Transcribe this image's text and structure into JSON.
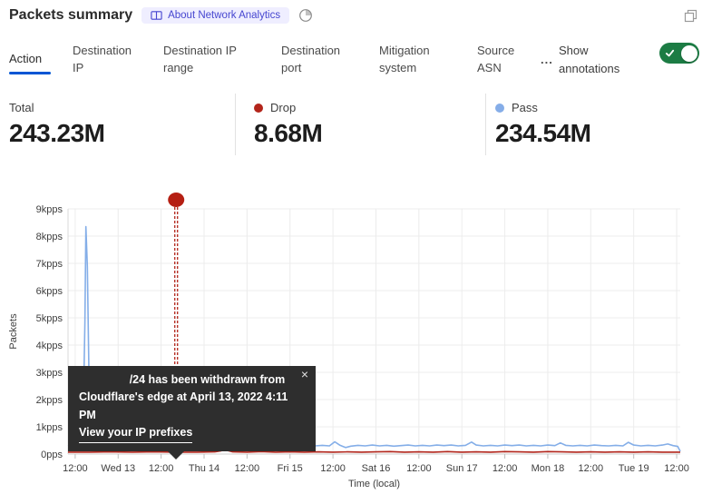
{
  "header": {
    "title": "Packets summary",
    "about_badge": "About Network Analytics",
    "icons": {
      "badge": "book-icon",
      "freshness": "clock-icon",
      "popout": "popout-icon"
    }
  },
  "tabs": {
    "items": [
      {
        "label": "Action",
        "active": true
      },
      {
        "label": "Destination IP",
        "active": false
      },
      {
        "label": "Destination IP range",
        "active": false
      },
      {
        "label": "Destination port",
        "active": false
      },
      {
        "label": "Mitigation system",
        "active": false
      },
      {
        "label": "Source ASN",
        "active": false
      }
    ],
    "more": "...",
    "show_annotations": {
      "label": "Show annotations",
      "enabled": true,
      "toggle_color": "#1c7c44"
    }
  },
  "stats": [
    {
      "label": "Total",
      "value": "243.23M",
      "dot": null
    },
    {
      "label": "Drop",
      "value": "8.68M",
      "dot": "#b3251b"
    },
    {
      "label": "Pass",
      "value": "234.54M",
      "dot": "#85ade8"
    }
  ],
  "tooltip": {
    "line1": "/24 has been withdrawn from",
    "line2": "Cloudflare's edge at April 13, 2022 4:11 PM",
    "link": "View your IP prefixes",
    "close": "×"
  },
  "chart_data": {
    "type": "line",
    "title": "Packets summary",
    "xlabel": "Time (local)",
    "ylabel": "Packets",
    "x_tick_labels": [
      "12:00",
      "Wed 13",
      "12:00",
      "Thu 14",
      "12:00",
      "Fri 15",
      "12:00",
      "Sat 16",
      "12:00",
      "Sun 17",
      "12:00",
      "Mon 18",
      "12:00",
      "Tue 19",
      "12:00"
    ],
    "x_tick_hours": [
      2,
      14,
      26,
      38,
      50,
      62,
      74,
      86,
      98,
      110,
      122,
      134,
      146,
      158,
      170
    ],
    "x_domain_hours": [
      0,
      171
    ],
    "y_tick_labels": [
      "0pps",
      "1kpps",
      "2kpps",
      "3kpps",
      "4kpps",
      "5kpps",
      "6kpps",
      "7kpps",
      "8kpps",
      "9kpps"
    ],
    "y_domain_kpps": [
      0,
      9
    ],
    "grid": true,
    "legend_position": "stats-row",
    "series": [
      {
        "name": "Pass",
        "color": "#84aee8",
        "unit": "kpps",
        "points": [
          [
            0,
            0.3
          ],
          [
            1.2,
            0.36
          ],
          [
            2.0,
            0.55
          ],
          [
            2.6,
            0.78
          ],
          [
            3.1,
            0.62
          ],
          [
            3.6,
            0.5
          ],
          [
            4.2,
            1.1
          ],
          [
            4.7,
            4.8
          ],
          [
            5.0,
            8.35
          ],
          [
            5.4,
            6.9
          ],
          [
            5.9,
            2.4
          ],
          [
            6.5,
            0.9
          ],
          [
            7.2,
            0.55
          ],
          [
            8.5,
            0.42
          ],
          [
            10,
            0.34
          ],
          [
            12,
            0.31
          ],
          [
            14,
            0.33
          ],
          [
            16,
            0.3
          ],
          [
            18,
            0.35
          ],
          [
            20,
            0.31
          ],
          [
            21.5,
            0.47
          ],
          [
            23,
            0.35
          ],
          [
            25,
            0.31
          ],
          [
            27,
            0.33
          ],
          [
            29,
            0.3
          ],
          [
            30.2,
            0.33
          ],
          [
            32,
            0.31
          ],
          [
            34,
            0.34
          ],
          [
            36,
            0.31
          ],
          [
            37.5,
            0.42
          ],
          [
            39,
            0.33
          ],
          [
            41,
            0.3
          ],
          [
            43,
            0.33
          ],
          [
            45,
            0.31
          ],
          [
            47,
            0.34
          ],
          [
            49,
            0.3
          ],
          [
            51,
            0.32
          ],
          [
            53.5,
            0.48
          ],
          [
            55,
            0.37
          ],
          [
            57,
            0.31
          ],
          [
            59,
            0.33
          ],
          [
            61,
            0.3
          ],
          [
            63,
            0.4
          ],
          [
            65,
            0.31
          ],
          [
            67,
            0.33
          ],
          [
            69,
            0.3
          ],
          [
            71,
            0.32
          ],
          [
            73,
            0.3
          ],
          [
            74.5,
            0.45
          ],
          [
            76,
            0.32
          ],
          [
            77.5,
            0.24
          ],
          [
            79,
            0.29
          ],
          [
            81,
            0.32
          ],
          [
            83,
            0.3
          ],
          [
            85,
            0.33
          ],
          [
            87,
            0.3
          ],
          [
            89,
            0.32
          ],
          [
            91,
            0.29
          ],
          [
            93,
            0.31
          ],
          [
            95,
            0.33
          ],
          [
            97,
            0.3
          ],
          [
            99,
            0.32
          ],
          [
            101,
            0.3
          ],
          [
            103,
            0.33
          ],
          [
            105,
            0.31
          ],
          [
            107,
            0.33
          ],
          [
            109,
            0.3
          ],
          [
            111,
            0.32
          ],
          [
            112.7,
            0.44
          ],
          [
            114,
            0.33
          ],
          [
            116,
            0.3
          ],
          [
            118,
            0.32
          ],
          [
            120,
            0.3
          ],
          [
            122,
            0.33
          ],
          [
            124,
            0.31
          ],
          [
            126,
            0.33
          ],
          [
            128,
            0.3
          ],
          [
            130,
            0.32
          ],
          [
            132,
            0.3
          ],
          [
            134,
            0.33
          ],
          [
            136,
            0.31
          ],
          [
            137.5,
            0.41
          ],
          [
            139,
            0.32
          ],
          [
            141,
            0.3
          ],
          [
            143,
            0.32
          ],
          [
            145,
            0.3
          ],
          [
            147,
            0.33
          ],
          [
            149,
            0.31
          ],
          [
            151,
            0.3
          ],
          [
            153,
            0.32
          ],
          [
            155,
            0.3
          ],
          [
            156.5,
            0.43
          ],
          [
            158,
            0.33
          ],
          [
            160,
            0.3
          ],
          [
            162,
            0.32
          ],
          [
            164,
            0.3
          ],
          [
            166,
            0.33
          ],
          [
            167.5,
            0.37
          ],
          [
            169,
            0.31
          ],
          [
            170.3,
            0.28
          ],
          [
            171,
            0.1
          ]
        ]
      },
      {
        "name": "Drop",
        "color": "#b2261c",
        "unit": "kpps",
        "points": [
          [
            0,
            0.07
          ],
          [
            6,
            0.07
          ],
          [
            12,
            0.08
          ],
          [
            18,
            0.07
          ],
          [
            24,
            0.08
          ],
          [
            30,
            0.07
          ],
          [
            36,
            0.07
          ],
          [
            41,
            0.08
          ],
          [
            42.8,
            0.12
          ],
          [
            43.8,
            0.3
          ],
          [
            44.8,
            0.12
          ],
          [
            46,
            0.08
          ],
          [
            50,
            0.07
          ],
          [
            54,
            0.09
          ],
          [
            58,
            0.07
          ],
          [
            62,
            0.08
          ],
          [
            66,
            0.07
          ],
          [
            70,
            0.08
          ],
          [
            74,
            0.07
          ],
          [
            78,
            0.08
          ],
          [
            82,
            0.07
          ],
          [
            86,
            0.08
          ],
          [
            90,
            0.09
          ],
          [
            94,
            0.07
          ],
          [
            98,
            0.08
          ],
          [
            102,
            0.07
          ],
          [
            106,
            0.09
          ],
          [
            110,
            0.07
          ],
          [
            114,
            0.08
          ],
          [
            118,
            0.07
          ],
          [
            122,
            0.09
          ],
          [
            126,
            0.08
          ],
          [
            130,
            0.07
          ],
          [
            134,
            0.09
          ],
          [
            138,
            0.08
          ],
          [
            142,
            0.07
          ],
          [
            146,
            0.08
          ],
          [
            150,
            0.07
          ],
          [
            154,
            0.08
          ],
          [
            158,
            0.07
          ],
          [
            162,
            0.08
          ],
          [
            166,
            0.07
          ],
          [
            171,
            0.07
          ]
        ]
      }
    ],
    "annotation": {
      "label": "/24 has been withdrawn from Cloudflare's edge at April 13, 2022 4:11 PM",
      "link": "View your IP prefixes",
      "x_hours": 30.2,
      "color": "#b2261c"
    }
  }
}
